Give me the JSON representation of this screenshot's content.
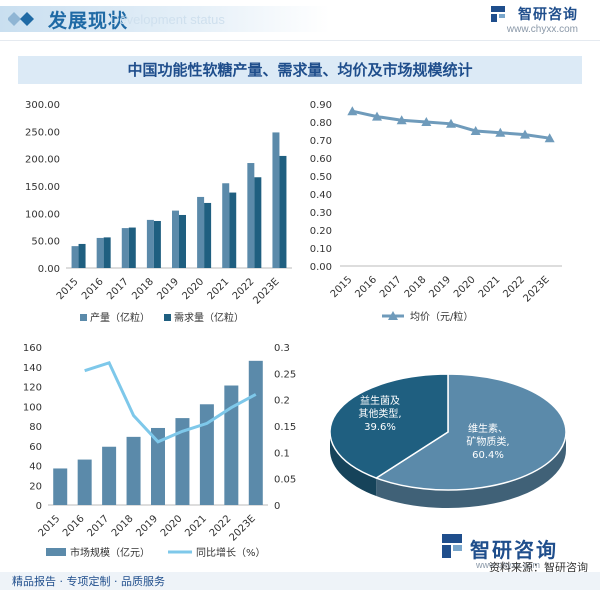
{
  "header": {
    "title": "发展现状",
    "subtitle": "Development status",
    "brand_name": "智研咨询",
    "brand_url": "www.chyxx.com"
  },
  "main_title": "中国功能性软糖产量、需求量、均价及市场规模统计",
  "chart_data": [
    {
      "type": "bar",
      "categories": [
        "2015",
        "2016",
        "2017",
        "2018",
        "2019",
        "2020",
        "2021",
        "2022",
        "2023E"
      ],
      "series": [
        {
          "name": "产量（亿粒）",
          "values": [
            40,
            55,
            73,
            88,
            105,
            130,
            155,
            192,
            248
          ],
          "color": "#5b8aaa"
        },
        {
          "name": "需求量（亿粒）",
          "values": [
            44,
            56,
            74,
            86,
            97,
            119,
            138,
            166,
            205
          ],
          "color": "#1f5f80"
        }
      ],
      "ylim": [
        0,
        300
      ],
      "yticks": [
        "0.00",
        "50.00",
        "100.00",
        "150.00",
        "200.00",
        "250.00",
        "300.00"
      ],
      "legend": "bottom"
    },
    {
      "type": "line",
      "categories": [
        "2015",
        "2016",
        "2017",
        "2018",
        "2019",
        "2020",
        "2021",
        "2022",
        "2023E"
      ],
      "series": [
        {
          "name": "均价（元/粒）",
          "values": [
            0.86,
            0.83,
            0.81,
            0.8,
            0.79,
            0.75,
            0.74,
            0.73,
            0.71
          ],
          "color": "#6f9bbb"
        }
      ],
      "ylim": [
        0,
        0.9
      ],
      "yticks": [
        "0.00",
        "0.10",
        "0.20",
        "0.30",
        "0.40",
        "0.50",
        "0.60",
        "0.70",
        "0.80",
        "0.90"
      ],
      "legend": "bottom"
    },
    {
      "type": "bar",
      "categories": [
        "2015",
        "2016",
        "2017",
        "2018",
        "2019",
        "2020",
        "2021",
        "2022",
        "2023E"
      ],
      "series": [
        {
          "name": "市场规模（亿元）",
          "values": [
            37,
            46,
            59,
            69,
            78,
            88,
            102,
            121,
            146
          ],
          "color": "#5b8aaa",
          "axis": "left"
        },
        {
          "name": "同比增长（%）",
          "values": [
            null,
            0.255,
            0.27,
            0.17,
            0.12,
            0.14,
            0.155,
            0.185,
            0.21
          ],
          "color": "#7ec8ea",
          "axis": "right",
          "render": "line"
        }
      ],
      "ylim": [
        0,
        160
      ],
      "yticks": [
        "0",
        "20",
        "40",
        "60",
        "80",
        "100",
        "120",
        "140",
        "160"
      ],
      "y2lim": [
        0,
        0.3
      ],
      "y2ticks": [
        "0",
        "0.05",
        "0.1",
        "0.15",
        "0.2",
        "0.25",
        "0.3"
      ],
      "legend": "bottom"
    },
    {
      "type": "pie",
      "slices": [
        {
          "label": "维生素、矿物质类,",
          "pct_label": "60.4%",
          "value": 60.4,
          "color": "#5b8aaa"
        },
        {
          "label": "益生菌及其他类型,",
          "pct_label": "39.6%",
          "value": 39.6,
          "color": "#1f5f80"
        }
      ]
    }
  ],
  "bottom_brand": {
    "name": "智研咨询",
    "url": "www.chyxx.com"
  },
  "source": "资料来源：智研咨询",
  "footer": "精品报告 · 专项定制 · 品质服务"
}
